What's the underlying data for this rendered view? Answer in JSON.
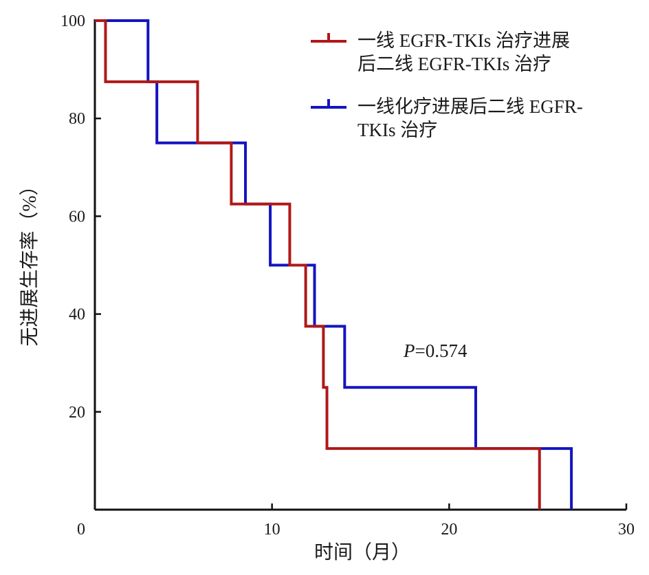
{
  "chart_data": {
    "type": "line",
    "step": true,
    "xlabel": "时间（月）",
    "ylabel": "无进展生存率（%）",
    "xlim": [
      0,
      30
    ],
    "ylim": [
      0,
      100
    ],
    "xticks": [
      0,
      10,
      20,
      30
    ],
    "yticks": [
      20,
      40,
      60,
      80,
      100
    ],
    "grid": false,
    "legend_position": "top-right",
    "annotation": {
      "italic": "P",
      "text": "=0.574"
    },
    "series": [
      {
        "name": "一线 EGFR-TKIs 治疗进展后二线 EGFR-TKIs 治疗",
        "legend_lines": [
          "一线 EGFR-TKIs 治疗进展",
          "后二线 EGFR-TKIs 治疗"
        ],
        "color": "#b01818",
        "x": [
          0,
          0.6,
          0.6,
          5.8,
          5.8,
          7.7,
          7.7,
          11.0,
          11.0,
          11.9,
          11.9,
          12.9,
          12.9,
          13.1,
          13.1,
          25.1,
          25.1
        ],
        "y": [
          100,
          100,
          87.5,
          87.5,
          75,
          75,
          62.5,
          62.5,
          50,
          50,
          37.5,
          37.5,
          25,
          25,
          12.5,
          12.5,
          0
        ]
      },
      {
        "name": "一线化疗进展后二线 EGFR-TKIs 治疗",
        "legend_lines": [
          "一线化疗进展后二线 EGFR-",
          "TKIs 治疗"
        ],
        "color": "#1414c0",
        "x": [
          0,
          3.0,
          3.0,
          3.5,
          3.5,
          8.5,
          8.5,
          9.9,
          9.9,
          12.4,
          12.4,
          14.1,
          14.1,
          21.5,
          21.5,
          26.9,
          26.9
        ],
        "y": [
          100,
          100,
          87.5,
          87.5,
          75,
          75,
          62.5,
          62.5,
          50,
          50,
          37.5,
          37.5,
          25,
          25,
          12.5,
          12.5,
          0
        ]
      }
    ]
  }
}
